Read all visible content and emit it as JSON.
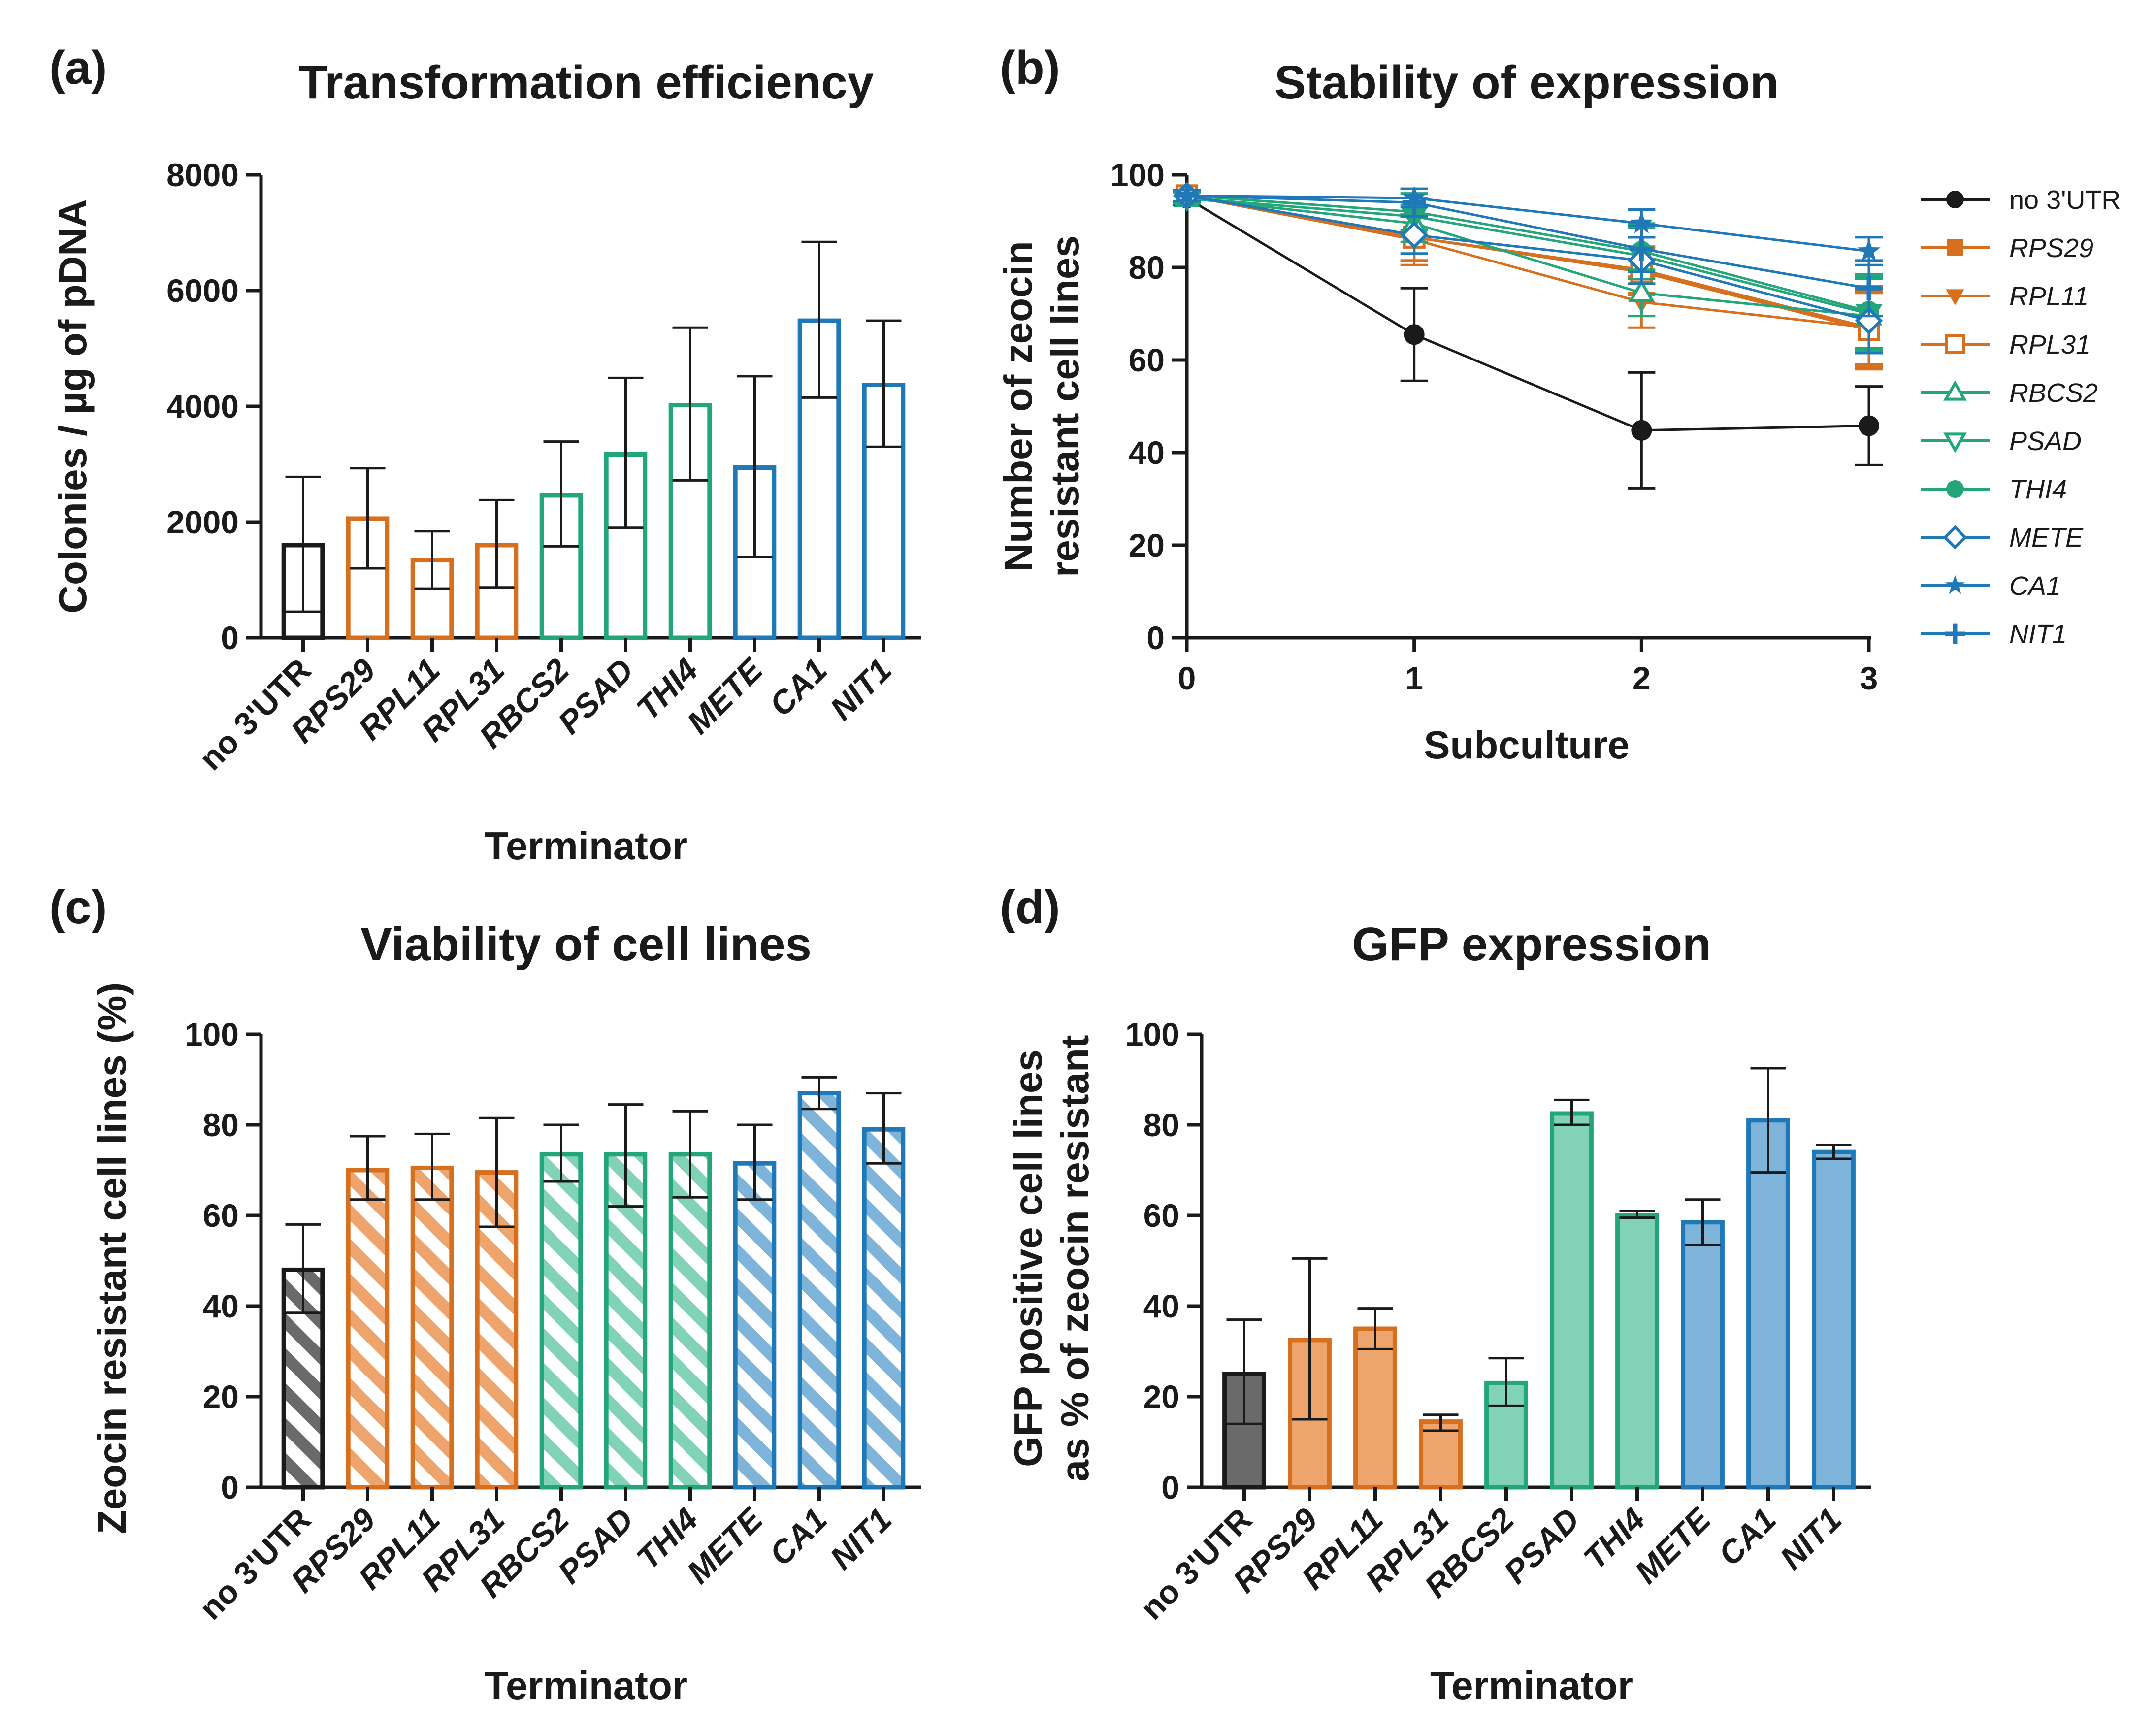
{
  "figure": {
    "panels": [
      "(a)",
      "(b)",
      "(c)",
      "(d)"
    ],
    "colors": {
      "black": "#1a1a1a",
      "orange": "#d66f1e",
      "green": "#22a67a",
      "blue": "#1f78b8",
      "orange_fill": "#eea56d",
      "green_fill": "#82d2b7",
      "blue_fill": "#7fb4da",
      "black_fill": "#6a6a6a"
    }
  },
  "chart_data": [
    {
      "id": "a",
      "type": "bar",
      "panel": "(a)",
      "title": "Transformation efficiency",
      "xlabel": "Terminator",
      "ylabel": "Colonies / µg of pDNA",
      "ylim": [
        0,
        8000
      ],
      "yticks": [
        0,
        2000,
        4000,
        6000,
        8000
      ],
      "fill": "none",
      "categories": [
        "no 3'UTR",
        "RPS29",
        "RPL11",
        "RPL31",
        "RBCS2",
        "PSAD",
        "THI4",
        "METE",
        "CA1",
        "NIT1"
      ],
      "italic": [
        false,
        true,
        true,
        true,
        true,
        true,
        true,
        true,
        true,
        true
      ],
      "color_groups": [
        "black",
        "orange",
        "orange",
        "orange",
        "green",
        "green",
        "green",
        "blue",
        "blue",
        "blue"
      ],
      "values": [
        1600,
        2060,
        1340,
        1600,
        2460,
        3170,
        4020,
        2940,
        5480,
        4370
      ],
      "err_low": [
        450,
        1200,
        850,
        870,
        1580,
        1900,
        2720,
        1400,
        4150,
        3300
      ],
      "err_high": [
        2780,
        2930,
        1840,
        2380,
        3390,
        4490,
        5360,
        4520,
        6840,
        5480
      ]
    },
    {
      "id": "b",
      "type": "line",
      "panel": "(b)",
      "title": "Stability of expression",
      "xlabel": "Subculture",
      "ylabel": "Number of zeocin resistant cell lines",
      "xlim": [
        0,
        3
      ],
      "ylim": [
        0,
        100
      ],
      "xticks": [
        0,
        1,
        2,
        3
      ],
      "yticks": [
        0,
        20,
        40,
        60,
        80,
        100
      ],
      "x": [
        0,
        1,
        2,
        3
      ],
      "series": [
        {
          "name": "no 3'UTR",
          "italic": false,
          "color": "black",
          "marker": "circle",
          "values": [
            95,
            65.5,
            44.8,
            45.8
          ],
          "err": [
            1.5,
            10,
            12.5,
            8.5
          ]
        },
        {
          "name": "RPS29",
          "italic": true,
          "color": "orange",
          "marker": "square",
          "values": [
            95.5,
            86.5,
            79.5,
            67
          ],
          "err": [
            1.2,
            5,
            5,
            8
          ]
        },
        {
          "name": "RPL11",
          "italic": true,
          "color": "orange",
          "marker": "triangle-down",
          "values": [
            95.5,
            86,
            72.5,
            67
          ],
          "err": [
            1.2,
            5.5,
            5.5,
            9
          ]
        },
        {
          "name": "RPL31",
          "italic": true,
          "color": "orange",
          "marker": "square-open",
          "values": [
            95.5,
            86.5,
            79,
            66.5
          ],
          "err": [
            1.2,
            5,
            5,
            8
          ]
        },
        {
          "name": "RBCS2",
          "italic": true,
          "color": "green",
          "marker": "triangle-open",
          "values": [
            95,
            89.5,
            74.5,
            69.5
          ],
          "err": [
            1.2,
            4,
            5,
            8
          ]
        },
        {
          "name": "PSAD",
          "italic": true,
          "color": "green",
          "marker": "triangle-down-open",
          "values": [
            95,
            91,
            82.5,
            70
          ],
          "err": [
            1.2,
            4,
            6,
            8
          ]
        },
        {
          "name": "THI4",
          "italic": true,
          "color": "green",
          "marker": "circle",
          "values": [
            95.5,
            92,
            83.5,
            70.5
          ],
          "err": [
            1.2,
            4,
            6,
            8
          ]
        },
        {
          "name": "METE",
          "italic": true,
          "color": "blue",
          "marker": "diamond-open",
          "values": [
            95.5,
            87,
            81.5,
            68.5
          ],
          "err": [
            1.2,
            4,
            5,
            7
          ]
        },
        {
          "name": "CA1",
          "italic": true,
          "color": "blue",
          "marker": "star",
          "values": [
            95.5,
            95,
            89.5,
            83.5
          ],
          "err": [
            1.2,
            2,
            3,
            3
          ]
        },
        {
          "name": "NIT1",
          "italic": true,
          "color": "blue",
          "marker": "plus",
          "values": [
            95.5,
            94,
            84,
            75.5
          ],
          "err": [
            1.2,
            3,
            5,
            6
          ]
        }
      ]
    },
    {
      "id": "c",
      "type": "bar",
      "panel": "(c)",
      "title": "Viability of cell lines",
      "xlabel": "Terminator",
      "ylabel": "Zeocin resistant cell lines (%)",
      "ylim": [
        0,
        100
      ],
      "yticks": [
        0,
        20,
        40,
        60,
        80,
        100
      ],
      "fill": "hatch",
      "categories": [
        "no 3'UTR",
        "RPS29",
        "RPL11",
        "RPL31",
        "RBCS2",
        "PSAD",
        "THI4",
        "METE",
        "CA1",
        "NIT1"
      ],
      "italic": [
        false,
        true,
        true,
        true,
        true,
        true,
        true,
        true,
        true,
        true
      ],
      "color_groups": [
        "black",
        "orange",
        "orange",
        "orange",
        "green",
        "green",
        "green",
        "blue",
        "blue",
        "blue"
      ],
      "values": [
        48,
        70,
        70.5,
        69.5,
        73.5,
        73.5,
        73.5,
        71.5,
        87,
        79
      ],
      "err_low": [
        38.5,
        63.5,
        63.5,
        57.5,
        67.5,
        62,
        64,
        63.5,
        83.5,
        71.5
      ],
      "err_high": [
        58,
        77.5,
        78,
        81.5,
        80,
        84.5,
        83,
        80,
        90.5,
        87
      ]
    },
    {
      "id": "d",
      "type": "bar",
      "panel": "(d)",
      "title": "GFP expression",
      "xlabel": "Terminator",
      "ylabel": [
        "GFP positive cell lines",
        "as % of zeocin resistant"
      ],
      "ylim": [
        0,
        100
      ],
      "yticks": [
        0,
        20,
        40,
        60,
        80,
        100
      ],
      "fill": "solid",
      "categories": [
        "no 3'UTR",
        "RPS29",
        "RPL11",
        "RPL31",
        "RBCS2",
        "PSAD",
        "THI4",
        "METE",
        "CA1",
        "NIT1"
      ],
      "italic": [
        false,
        true,
        true,
        true,
        true,
        true,
        true,
        true,
        true,
        true
      ],
      "color_groups": [
        "black",
        "orange",
        "orange",
        "orange",
        "green",
        "green",
        "green",
        "blue",
        "blue",
        "blue"
      ],
      "values": [
        25,
        32.5,
        35,
        14.5,
        23,
        82.5,
        60,
        58.5,
        81,
        74
      ],
      "err_low": [
        14,
        15,
        30.5,
        12.5,
        18,
        80,
        59.5,
        53.5,
        69.5,
        72.5
      ],
      "err_high": [
        37,
        50.5,
        39.5,
        16,
        28.5,
        85.5,
        61,
        63.5,
        92.5,
        75.5
      ]
    }
  ]
}
